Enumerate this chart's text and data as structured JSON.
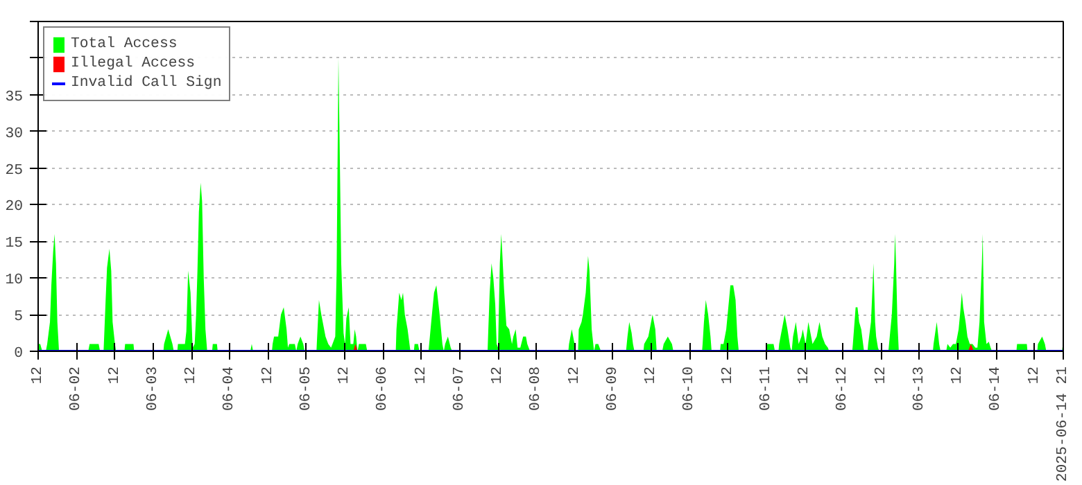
{
  "chart_data": {
    "type": "area",
    "legend": "top left",
    "grid": "y",
    "tick_labels": true,
    "xlim": [
      "2025-06-01T12:00",
      "2025-06-14T21:00"
    ],
    "ylim": [
      0,
      45
    ],
    "yticks": [
      0,
      5,
      10,
      15,
      20,
      25,
      30,
      35,
      {
        "value": 40,
        "label": null
      },
      {
        "value": 45,
        "label": null
      }
    ],
    "xticks": [
      {
        "value": "2025-06-01T12:00",
        "label": "12"
      },
      {
        "value": "2025-06-02T00:00",
        "label": "06-02"
      },
      {
        "value": "2025-06-02T12:00",
        "label": "12"
      },
      {
        "value": "2025-06-03T00:00",
        "label": "06-03"
      },
      {
        "value": "2025-06-03T12:00",
        "label": "12"
      },
      {
        "value": "2025-06-04T00:00",
        "label": "06-04"
      },
      {
        "value": "2025-06-04T12:00",
        "label": "12"
      },
      {
        "value": "2025-06-05T00:00",
        "label": "06-05"
      },
      {
        "value": "2025-06-05T12:00",
        "label": "12"
      },
      {
        "value": "2025-06-06T00:00",
        "label": "06-06"
      },
      {
        "value": "2025-06-06T12:00",
        "label": "12"
      },
      {
        "value": "2025-06-07T00:00",
        "label": "06-07"
      },
      {
        "value": "2025-06-07T12:00",
        "label": "12"
      },
      {
        "value": "2025-06-08T00:00",
        "label": "06-08"
      },
      {
        "value": "2025-06-08T12:00",
        "label": "12"
      },
      {
        "value": "2025-06-09T00:00",
        "label": "06-09"
      },
      {
        "value": "2025-06-09T12:00",
        "label": "12"
      },
      {
        "value": "2025-06-10T00:00",
        "label": "06-10"
      },
      {
        "value": "2025-06-10T12:00",
        "label": "12"
      },
      {
        "value": "2025-06-11T00:00",
        "label": "06-11"
      },
      {
        "value": "2025-06-11T12:00",
        "label": "12"
      },
      {
        "value": "2025-06-12T00:00",
        "label": "06-12"
      },
      {
        "value": "2025-06-12T12:00",
        "label": "12"
      },
      {
        "value": "2025-06-13T00:00",
        "label": "06-13"
      },
      {
        "value": "2025-06-13T12:00",
        "label": "12"
      },
      {
        "value": "2025-06-14T00:00",
        "label": "06-14"
      },
      {
        "value": "2025-06-14T12:00",
        "label": "12"
      },
      {
        "value": "2025-06-14T21:00",
        "label": "2025-06-14 21"
      }
    ],
    "series": [
      {
        "name": "Total Access",
        "color": "#00ff00",
        "x": [
          "2025-06-01T12:00",
          "2025-06-01T12:39",
          "2025-06-01T13:18",
          "2025-06-01T14:24",
          "2025-06-01T14:50",
          "2025-06-01T15:42",
          "2025-06-01T16:08",
          "2025-06-01T16:42",
          "2025-06-01T17:08",
          "2025-06-01T17:35",
          "2025-06-01T18:01",
          "2025-06-01T18:32",
          "2025-06-02T03:41",
          "2025-06-02T04:07",
          "2025-06-02T06:57",
          "2025-06-02T07:23",
          "2025-06-02T08:29",
          "2025-06-02T08:42",
          "2025-06-02T09:08",
          "2025-06-02T09:34",
          "2025-06-02T10:19",
          "2025-06-02T10:53",
          "2025-06-02T11:19",
          "2025-06-02T12:03",
          "2025-06-02T12:24",
          "2025-06-02T15:01",
          "2025-06-02T15:14",
          "2025-06-02T17:51",
          "2025-06-02T18:04",
          "2025-06-03T03:13",
          "2025-06-03T03:26",
          "2025-06-03T04:44",
          "2025-06-03T06:03",
          "2025-06-03T06:29",
          "2025-06-03T07:34",
          "2025-06-03T07:47",
          "2025-06-03T09:58",
          "2025-06-03T10:24",
          "2025-06-03T10:58",
          "2025-06-03T11:43",
          "2025-06-03T12:22",
          "2025-06-03T13:01",
          "2025-06-03T13:28",
          "2025-06-03T13:53",
          "2025-06-03T14:20",
          "2025-06-03T14:53",
          "2025-06-03T15:20",
          "2025-06-03T15:51",
          "2025-06-03T16:23",
          "2025-06-03T16:56",
          "2025-06-03T18:28",
          "2025-06-03T18:41",
          "2025-06-03T19:59",
          "2025-06-03T20:13",
          "2025-06-04T06:27",
          "2025-06-04T06:53",
          "2025-06-04T07:19",
          "2025-06-04T13:12",
          "2025-06-04T13:25",
          "2025-06-04T13:52",
          "2025-06-04T15:10",
          "2025-06-04T16:02",
          "2025-06-04T16:54",
          "2025-06-04T17:47",
          "2025-06-04T18:13",
          "2025-06-04T18:39",
          "2025-06-04T20:23",
          "2025-06-04T20:50",
          "2025-06-04T21:16",
          "2025-06-04T22:08",
          "2025-06-04T23:01",
          "2025-06-04T23:26",
          "2025-06-05T03:09",
          "2025-06-05T03:22",
          "2025-06-05T03:56",
          "2025-06-05T04:40",
          "2025-06-05T05:59",
          "2025-06-05T06:51",
          "2025-06-05T07:43",
          "2025-06-05T08:10",
          "2025-06-05T09:02",
          "2025-06-05T09:28",
          "2025-06-05T10:02",
          "2025-06-05T10:20",
          "2025-06-05T10:54",
          "2025-06-05T11:38",
          "2025-06-05T12:05",
          "2025-06-05T12:31",
          "2025-06-05T13:15",
          "2025-06-05T13:49",
          "2025-06-05T14:41",
          "2025-06-05T15:08",
          "2025-06-05T15:34",
          "2025-06-05T16:00",
          "2025-06-05T16:26",
          "2025-06-05T18:37",
          "2025-06-05T19:03",
          "2025-06-06T03:59",
          "2025-06-06T04:12",
          "2025-06-06T05:04",
          "2025-06-06T05:44",
          "2025-06-06T06:15",
          "2025-06-06T06:49",
          "2025-06-06T07:41",
          "2025-06-06T08:34",
          "2025-06-06T09:39",
          "2025-06-06T09:52",
          "2025-06-06T10:57",
          "2025-06-06T11:23",
          "2025-06-06T14:13",
          "2025-06-06T14:40",
          "2025-06-06T15:05",
          "2025-06-06T15:58",
          "2025-06-06T16:42",
          "2025-06-06T17:43",
          "2025-06-06T18:35",
          "2025-06-06T19:01",
          "2025-06-06T19:27",
          "2025-06-06T20:19",
          "2025-06-06T21:11",
          "2025-06-06T21:38",
          "2025-06-07T08:44",
          "2025-06-07T08:58",
          "2025-06-07T09:23",
          "2025-06-07T09:58",
          "2025-06-07T10:32",
          "2025-06-07T11:08",
          "2025-06-07T11:34",
          "2025-06-07T12:01",
          "2025-06-07T12:34",
          "2025-06-07T13:01",
          "2025-06-07T13:19",
          "2025-06-07T13:53",
          "2025-06-07T14:37",
          "2025-06-07T15:30",
          "2025-06-07T16:22",
          "2025-06-07T16:48",
          "2025-06-07T17:32",
          "2025-06-07T18:07",
          "2025-06-07T18:59",
          "2025-06-07T19:52",
          "2025-06-07T20:44",
          "2025-06-07T21:10",
          "2025-06-07T22:02",
          "2025-06-08T10:01",
          "2025-06-08T10:14",
          "2025-06-08T11:06",
          "2025-06-08T11:58",
          "2025-06-08T12:25",
          "2025-06-08T13:04",
          "2025-06-08T13:17",
          "2025-06-08T14:09",
          "2025-06-08T14:35",
          "2025-06-08T15:28",
          "2025-06-08T16:12",
          "2025-06-08T16:38",
          "2025-06-08T17:20",
          "2025-06-08T18:04",
          "2025-06-08T18:31",
          "2025-06-08T19:23",
          "2025-06-08T20:15",
          "2025-06-09T04:05",
          "2025-06-09T04:32",
          "2025-06-09T05:06",
          "2025-06-09T05:50",
          "2025-06-09T06:16",
          "2025-06-09T06:43",
          "2025-06-09T09:32",
          "2025-06-09T09:46",
          "2025-06-09T11:04",
          "2025-06-09T11:56",
          "2025-06-09T12:23",
          "2025-06-09T13:15",
          "2025-06-09T13:41",
          "2025-06-09T15:25",
          "2025-06-09T15:52",
          "2025-06-09T17:10",
          "2025-06-09T18:28",
          "2025-06-09T18:55",
          "2025-06-10T03:53",
          "2025-06-10T04:04",
          "2025-06-10T04:29",
          "2025-06-10T05:04",
          "2025-06-10T05:48",
          "2025-06-10T06:32",
          "2025-06-10T06:53",
          "2025-06-10T09:31",
          "2025-06-10T09:44",
          "2025-06-10T10:36",
          "2025-06-10T11:28",
          "2025-06-10T12:20",
          "2025-06-10T12:46",
          "2025-06-10T13:39",
          "2025-06-10T14:23",
          "2025-06-10T14:57",
          "2025-06-10T15:23",
          "2025-06-10T23:53",
          "2025-06-11T00:20",
          "2025-06-11T02:17",
          "2025-06-11T02:43",
          "2025-06-11T03:49",
          "2025-06-11T04:02",
          "2025-06-11T04:28",
          "2025-06-11T05:20",
          "2025-06-11T05:46",
          "2025-06-11T06:38",
          "2025-06-11T07:31",
          "2025-06-11T07:57",
          "2025-06-11T08:23",
          "2025-06-11T09:16",
          "2025-06-11T10:08",
          "2025-06-11T11:00",
          "2025-06-11T11:26",
          "2025-06-11T12:19",
          "2025-06-11T13:11",
          "2025-06-11T14:29",
          "2025-06-11T15:47",
          "2025-06-11T16:40",
          "2025-06-11T17:32",
          "2025-06-11T18:25",
          "2025-06-11T19:17",
          "2025-06-11T19:43",
          "2025-06-12T02:55",
          "2025-06-12T03:07",
          "2025-06-12T03:59",
          "2025-06-12T04:34",
          "2025-06-12T05:05",
          "2025-06-12T05:44",
          "2025-06-12T06:37",
          "2025-06-12T07:42",
          "2025-06-12T07:55",
          "2025-06-12T08:47",
          "2025-06-12T09:21",
          "2025-06-12T09:34",
          "2025-06-12T10:05",
          "2025-06-12T10:24",
          "2025-06-12T10:58",
          "2025-06-12T11:24",
          "2025-06-12T14:14",
          "2025-06-12T14:27",
          "2025-06-12T15:19",
          "2025-06-12T16:04",
          "2025-06-12T16:19",
          "2025-06-12T16:38",
          "2025-06-12T17:04",
          "2025-06-12T17:30",
          "2025-06-13T04:10",
          "2025-06-13T04:23",
          "2025-06-13T05:23",
          "2025-06-13T06:08",
          "2025-06-13T06:34",
          "2025-06-13T08:19",
          "2025-06-13T08:45",
          "2025-06-13T09:37",
          "2025-06-13T10:29",
          "2025-06-13T11:22",
          "2025-06-13T12:14",
          "2025-06-13T12:40",
          "2025-06-13T13:14",
          "2025-06-13T13:40",
          "2025-06-13T14:25",
          "2025-06-13T14:59",
          "2025-06-13T15:43",
          "2025-06-13T16:35",
          "2025-06-13T17:28",
          "2025-06-13T18:07",
          "2025-06-13T18:46",
          "2025-06-13T19:31",
          "2025-06-13T19:46",
          "2025-06-13T20:13",
          "2025-06-13T20:57",
          "2025-06-13T21:41",
          "2025-06-13T22:15",
          "2025-06-13T22:41",
          "2025-06-14T06:19",
          "2025-06-14T06:32",
          "2025-06-14T09:35",
          "2025-06-14T09:48",
          "2025-06-14T12:51",
          "2025-06-14T13:04",
          "2025-06-14T14:23",
          "2025-06-14T15:15",
          "2025-06-14T15:41",
          "2025-06-14T20:35",
          "2025-06-14T20:54",
          "2025-06-14T21:00"
        ],
        "values": [
          1,
          1,
          0,
          0,
          1,
          4,
          9,
          13.6,
          16,
          12,
          4,
          0,
          0,
          1,
          1,
          0,
          0,
          2.3,
          7,
          11.4,
          14,
          11,
          4,
          1,
          0,
          0,
          1,
          1,
          0,
          0,
          1,
          3,
          1,
          0,
          0,
          1,
          1,
          2.7,
          11,
          8,
          0.5,
          1,
          5,
          11,
          19,
          23,
          20.5,
          10,
          3,
          0,
          0,
          1,
          1,
          0,
          0,
          1,
          0,
          0,
          1,
          2,
          2,
          5,
          6,
          3,
          0.5,
          1,
          1,
          0,
          1,
          2,
          1,
          0,
          0,
          2,
          7,
          5,
          2,
          1,
          0.5,
          1,
          2,
          11,
          40,
          30.7,
          12,
          2.5,
          1,
          4.5,
          6,
          1,
          1,
          3,
          2,
          0,
          1,
          1,
          0,
          0,
          3,
          8,
          7,
          8,
          5,
          3,
          0,
          0,
          1,
          1,
          0,
          0,
          2,
          4,
          8,
          9,
          5,
          1,
          0,
          1,
          2,
          0.5,
          0,
          0,
          3,
          8,
          12,
          10,
          6.4,
          1,
          0.5,
          12,
          16,
          13.6,
          8.5,
          3.5,
          3,
          1,
          2,
          3,
          0.5,
          0.5,
          2,
          2,
          1,
          0,
          0,
          1,
          3,
          1,
          0,
          0,
          3,
          4,
          5,
          8,
          13,
          11,
          3,
          0,
          1,
          1,
          0,
          0,
          2,
          4,
          2.5,
          1,
          0,
          0,
          1,
          2,
          4,
          5,
          3,
          0,
          0,
          1,
          2,
          1,
          0,
          0,
          1,
          4,
          7,
          5,
          2,
          0,
          0,
          1,
          1,
          3,
          7,
          9,
          9,
          7,
          2,
          0,
          0,
          1,
          1,
          0,
          0,
          1,
          2,
          4,
          5,
          3,
          0.5,
          0,
          2,
          4,
          1,
          2,
          3,
          1,
          4,
          1,
          2,
          4,
          2,
          1,
          0.5,
          0,
          0,
          1,
          6,
          6,
          4,
          3,
          0,
          0,
          1,
          4,
          9.5,
          12,
          4,
          2,
          0.5,
          0,
          0,
          1,
          5,
          12,
          16,
          12,
          4,
          0,
          0,
          1,
          4,
          1,
          0,
          0,
          1,
          0.5,
          1,
          1,
          3,
          5,
          8,
          6,
          4,
          2,
          1,
          1,
          0.5,
          0.5,
          4,
          12,
          16,
          4,
          1,
          1.3,
          0.5,
          0,
          0,
          1,
          1,
          0,
          0,
          1,
          2,
          1,
          0,
          0,
          1,
          1
        ]
      },
      {
        "name": "Illegal Access",
        "color": "#ff0000",
        "x": [
          "2025-06-01T12:00",
          "2025-06-05T14:41",
          "2025-06-05T15:21",
          "2025-06-05T16:00",
          "2025-06-13T15:10",
          "2025-06-13T16:04",
          "2025-06-13T17:00",
          "2025-06-14T21:00"
        ],
        "values": [
          0,
          0,
          1,
          0,
          0,
          1,
          0,
          0
        ]
      },
      {
        "name": "Invalid Call Sign",
        "type": "line",
        "color": "#0000ff",
        "x": [
          "2025-06-01T12:00",
          "2025-06-14T21:00"
        ],
        "values": [
          0,
          0
        ]
      }
    ]
  }
}
